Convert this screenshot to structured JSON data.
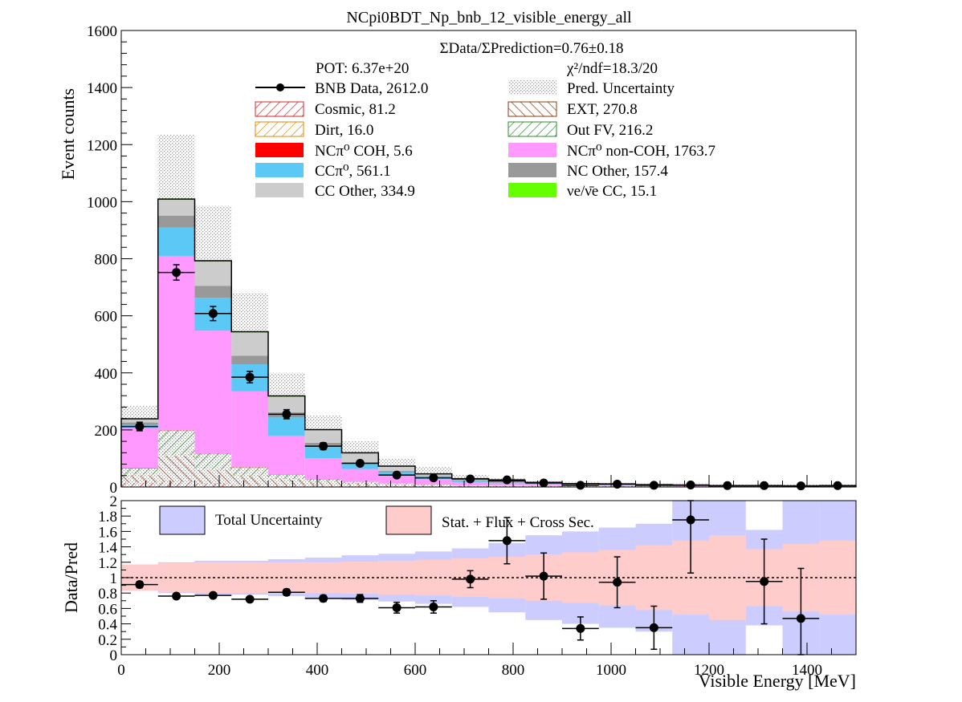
{
  "chart_data": [
    {
      "type": "bar",
      "title": "NCpi0BDT_Np_bnb_12_visible_energy_all",
      "xlabel": "",
      "ylabel": "Event counts",
      "xlim": [
        0,
        1500
      ],
      "ylim": [
        0,
        1600
      ],
      "xticks": [
        0,
        200,
        400,
        600,
        800,
        1000,
        1200,
        1400
      ],
      "yticks": [
        0,
        200,
        400,
        600,
        800,
        1000,
        1200,
        1400,
        1600
      ],
      "stacked": true,
      "grid": false,
      "legend_position": "top",
      "bin_edges": [
        0,
        75,
        150,
        225,
        300,
        375,
        450,
        525,
        600,
        675,
        750,
        825,
        900,
        975,
        1050,
        1125,
        1200,
        1275,
        1350,
        1425,
        1500
      ],
      "info": {
        "ratio_text": "ΣData/ΣPrediction=0.76±0.18",
        "pot_text": "POT: 6.37e+20",
        "chi2_text": "χ²/ndf=18.3/20"
      },
      "legend": [
        {
          "key": "data",
          "label": "BNB Data, 2612.0"
        },
        {
          "key": "unc",
          "label": "Pred. Uncertainty"
        },
        {
          "key": "cosmic",
          "label": "Cosmic, 81.2"
        },
        {
          "key": "ext",
          "label": "EXT, 270.8"
        },
        {
          "key": "dirt",
          "label": "Dirt, 16.0"
        },
        {
          "key": "outfv",
          "label": "Out FV, 216.2"
        },
        {
          "key": "ncpi0coh",
          "label": "NCπ⁰ COH,  5.6"
        },
        {
          "key": "ncpi0noncoh",
          "label": "NCπ⁰ non-COH,  1763.7"
        },
        {
          "key": "ccpi0",
          "label": "CCπ⁰, 561.1"
        },
        {
          "key": "ncother",
          "label": "NC Other, 157.4"
        },
        {
          "key": "ccother",
          "label": "CC Other, 334.9"
        },
        {
          "key": "nuecc",
          "label": "νe/ν̄e CC, 15.1"
        }
      ],
      "series": [
        {
          "name": "Cosmic, 81.2",
          "color": "#d62728",
          "fill": "hatch",
          "values": [
            15,
            18,
            12,
            8,
            6,
            4,
            3,
            2,
            2,
            1,
            1,
            1,
            1,
            1,
            1,
            1,
            1,
            1,
            1,
            1
          ]
        },
        {
          "name": "EXT, 270.8",
          "color": "#8b3a0f",
          "fill": "hatch",
          "values": [
            25,
            92,
            48,
            32,
            22,
            14,
            10,
            6,
            4,
            3,
            3,
            2,
            2,
            2,
            1,
            1,
            1,
            1,
            1,
            1
          ]
        },
        {
          "name": "Dirt, 16.0",
          "color": "#e08a00",
          "fill": "hatch",
          "values": [
            5,
            3,
            2,
            1,
            1,
            1,
            1,
            1,
            0,
            0,
            0,
            0,
            0,
            0,
            0,
            0,
            0,
            0,
            0,
            0
          ]
        },
        {
          "name": "Out FV, 216.2",
          "color": "#2e8b2e",
          "fill": "hatch",
          "values": [
            20,
            85,
            55,
            28,
            14,
            8,
            4,
            3,
            2,
            1,
            1,
            1,
            1,
            1,
            1,
            0,
            0,
            0,
            0,
            0
          ]
        },
        {
          "name": "NCπ⁰ COH,  5.6",
          "color": "#ff0000",
          "fill": "solid",
          "values": [
            1,
            1,
            1,
            1,
            1,
            1,
            0,
            0,
            0,
            0,
            0,
            0,
            0,
            0,
            0,
            0,
            0,
            0,
            0,
            0
          ]
        },
        {
          "name": "NCπ⁰ non-COH,  1763.7",
          "color": "#ff99ff",
          "fill": "solid",
          "values": [
            140,
            610,
            430,
            265,
            135,
            73,
            45,
            28,
            20,
            12,
            8,
            6,
            4,
            3,
            2,
            2,
            1,
            1,
            1,
            1
          ]
        },
        {
          "name": "CCπ⁰, 561.1",
          "color": "#5bc8f5",
          "fill": "solid",
          "values": [
            12,
            100,
            115,
            95,
            65,
            42,
            18,
            12,
            8,
            5,
            4,
            3,
            2,
            2,
            1,
            1,
            0,
            0,
            0,
            0
          ]
        },
        {
          "name": "NC Other, 157.4",
          "color": "#999999",
          "fill": "solid",
          "values": [
            8,
            42,
            42,
            30,
            18,
            12,
            6,
            4,
            2,
            2,
            1,
            1,
            1,
            1,
            1,
            0,
            0,
            0,
            0,
            0
          ]
        },
        {
          "name": "CC Other, 334.9",
          "color": "#cccccc",
          "fill": "solid",
          "values": [
            12,
            55,
            85,
            82,
            55,
            45,
            32,
            16,
            8,
            5,
            3,
            2,
            1,
            1,
            1,
            1,
            1,
            1,
            1,
            1
          ]
        },
        {
          "name": "νe/ν̄e CC, 15.1",
          "color": "#66ff00",
          "fill": "solid",
          "values": [
            1,
            3,
            3,
            2,
            2,
            1,
            1,
            1,
            0,
            0,
            0,
            0,
            0,
            0,
            0,
            0,
            0,
            0,
            0,
            0
          ]
        }
      ],
      "prediction_uncertainty_upper": [
        285,
        1235,
        985,
        680,
        400,
        250,
        160,
        100,
        70,
        42,
        30,
        22,
        18,
        15,
        12,
        12,
        10,
        10,
        10,
        10
      ],
      "data": {
        "name": "BNB Data, 2612.0",
        "x": [
          37.5,
          112.5,
          187.5,
          262.5,
          337.5,
          412.5,
          487.5,
          562.5,
          637.5,
          712.5,
          787.5,
          862.5,
          937.5,
          1012.5,
          1087.5,
          1162.5,
          1237.5,
          1312.5,
          1387.5,
          1462.5
        ],
        "y": [
          212,
          752,
          608,
          385,
          255,
          143,
          83,
          42,
          32,
          28,
          25,
          14,
          6,
          10,
          6,
          7,
          5,
          5,
          4,
          5
        ],
        "yerr": [
          15,
          27,
          25,
          20,
          16,
          12,
          9,
          6,
          6,
          5,
          5,
          4,
          2,
          3,
          2,
          3,
          2,
          2,
          2,
          2
        ]
      }
    },
    {
      "type": "scatter",
      "title": "",
      "xlabel": "Visible Energy [MeV]",
      "ylabel": "Data/Pred",
      "xlim": [
        0,
        1500
      ],
      "ylim": [
        0,
        2
      ],
      "xticks": [
        0,
        200,
        400,
        600,
        800,
        1000,
        1200,
        1400
      ],
      "yticks": [
        0,
        0.2,
        0.4,
        0.6,
        0.8,
        1,
        1.2,
        1.4,
        1.6,
        1.8,
        2
      ],
      "ytick_labels": [
        "0",
        "0.2",
        "0.4",
        "0.6",
        "0.8",
        "1",
        "1.2",
        "1.4",
        "1.6",
        "1.8",
        "2"
      ],
      "reference_line": 1,
      "legend": [
        {
          "label": "Total Uncertainty",
          "color": "#ccccff"
        },
        {
          "label": "Stat. + Flux + Cross Sec.",
          "color": "#ffcccc"
        }
      ],
      "total_uncertainty": [
        0.17,
        0.2,
        0.22,
        0.22,
        0.24,
        0.26,
        0.29,
        0.31,
        0.34,
        0.38,
        0.45,
        0.55,
        0.6,
        0.65,
        0.7,
        1.05,
        1.1,
        0.62,
        1.05,
        1.05
      ],
      "stat_flux_xsec_uncertainty": [
        0.17,
        0.19,
        0.2,
        0.2,
        0.2,
        0.2,
        0.21,
        0.22,
        0.23,
        0.25,
        0.27,
        0.3,
        0.33,
        0.36,
        0.42,
        0.48,
        0.55,
        0.37,
        0.44,
        0.48
      ],
      "data": {
        "x": [
          37.5,
          112.5,
          187.5,
          262.5,
          337.5,
          412.5,
          487.5,
          562.5,
          637.5,
          712.5,
          787.5,
          862.5,
          937.5,
          1012.5,
          1087.5,
          1162.5,
          1237.5,
          1312.5,
          1387.5,
          1462.5
        ],
        "y": [
          0.91,
          0.76,
          0.77,
          0.72,
          0.81,
          0.73,
          0.73,
          0.61,
          0.62,
          0.98,
          1.48,
          1.02,
          0.34,
          0.94,
          0.35,
          1.75,
          null,
          0.95,
          0.47,
          null
        ],
        "yerr": [
          0.04,
          0.03,
          0.03,
          0.03,
          0.04,
          0.04,
          0.05,
          0.07,
          0.08,
          0.11,
          0.3,
          0.3,
          0.15,
          0.33,
          0.28,
          0.69,
          null,
          0.55,
          0.65,
          null
        ],
        "xerr": 37.5
      }
    }
  ]
}
